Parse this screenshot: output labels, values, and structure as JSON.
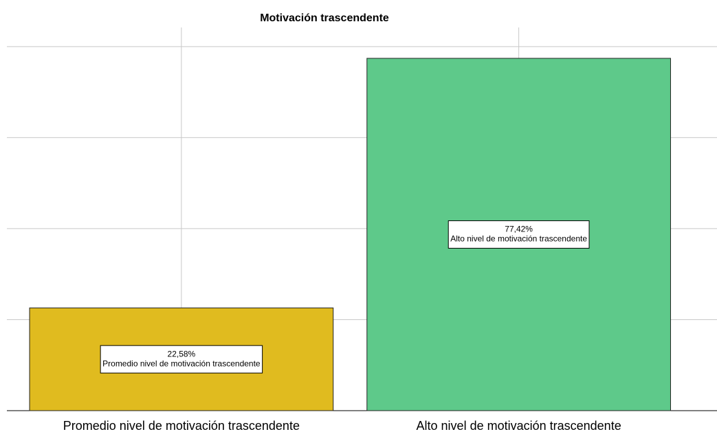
{
  "chart_data": {
    "type": "bar",
    "title": "Motivación trascendente",
    "categories": [
      "Promedio nivel de motivación trascendente",
      "Alto nivel de motivación trascendente"
    ],
    "values": [
      22.58,
      77.42
    ],
    "value_labels": [
      "22,58%",
      "77,42%"
    ],
    "colors": [
      "#e0bb1f",
      "#5ec98a"
    ],
    "ylim": [
      0,
      84.2
    ],
    "yticks": [
      0,
      20,
      40,
      60,
      80
    ],
    "grid": true
  }
}
